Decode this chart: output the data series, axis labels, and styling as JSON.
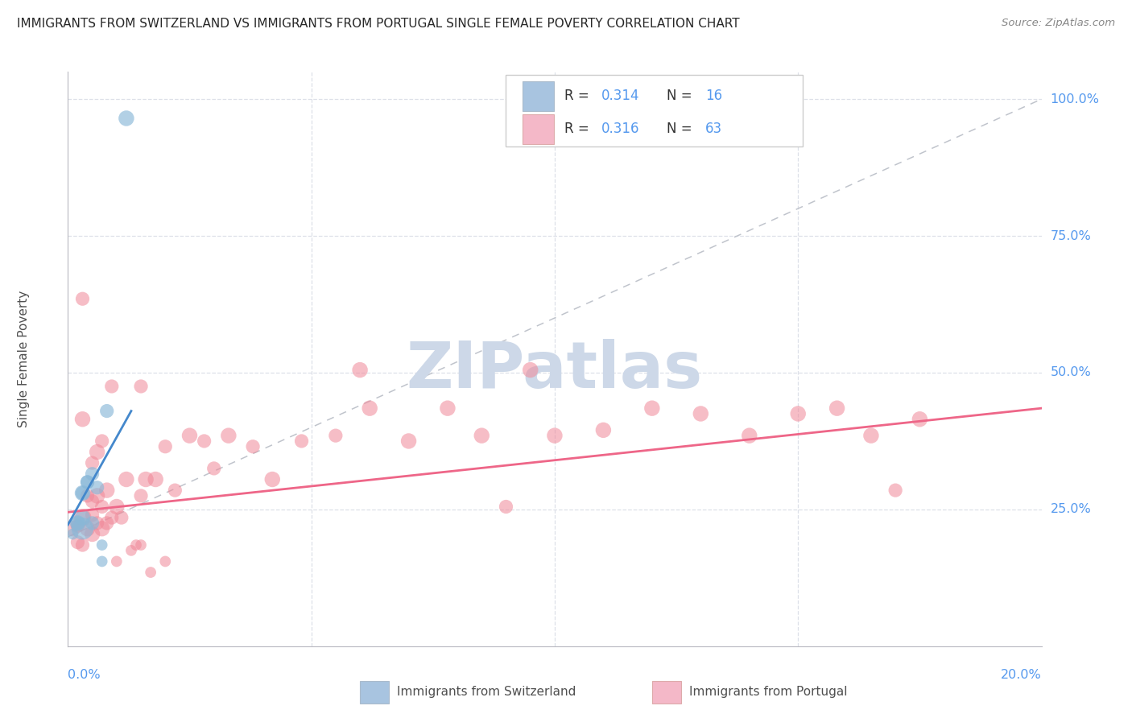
{
  "title": "IMMIGRANTS FROM SWITZERLAND VS IMMIGRANTS FROM PORTUGAL SINGLE FEMALE POVERTY CORRELATION CHART",
  "source": "Source: ZipAtlas.com",
  "ylabel": "Single Female Poverty",
  "ytick_labels": [
    "25.0%",
    "50.0%",
    "75.0%",
    "100.0%"
  ],
  "ytick_values": [
    0.25,
    0.5,
    0.75,
    1.0
  ],
  "xlim": [
    0.0,
    0.2
  ],
  "ylim": [
    0.0,
    1.05
  ],
  "legend_color_swiss": "#a8c4e0",
  "legend_color_port": "#f4b8c8",
  "dot_color_swiss": "#89b8d8",
  "dot_color_port": "#f08898",
  "trendline_color_swiss": "#4488cc",
  "trendline_color_port": "#ee6688",
  "refline_color": "#c0c4cc",
  "watermark_color": "#cdd8e8",
  "grid_color": "#dde0e8",
  "title_color": "#282828",
  "source_color": "#888888",
  "axis_label_color": "#5599ee",
  "swiss_x": [
    0.001,
    0.002,
    0.002,
    0.003,
    0.003,
    0.003,
    0.003,
    0.004,
    0.004,
    0.005,
    0.005,
    0.006,
    0.007,
    0.007,
    0.008,
    0.012
  ],
  "swiss_y": [
    0.205,
    0.225,
    0.225,
    0.215,
    0.235,
    0.28,
    0.28,
    0.3,
    0.3,
    0.315,
    0.225,
    0.29,
    0.185,
    0.155,
    0.43,
    0.965
  ],
  "swiss_size": [
    35,
    70,
    55,
    140,
    70,
    70,
    55,
    55,
    55,
    55,
    55,
    55,
    35,
    35,
    55,
    70
  ],
  "port_x": [
    0.001,
    0.002,
    0.002,
    0.003,
    0.003,
    0.004,
    0.004,
    0.005,
    0.005,
    0.005,
    0.006,
    0.006,
    0.006,
    0.007,
    0.007,
    0.008,
    0.008,
    0.009,
    0.01,
    0.01,
    0.011,
    0.012,
    0.013,
    0.014,
    0.015,
    0.015,
    0.016,
    0.017,
    0.018,
    0.02,
    0.022,
    0.025,
    0.028,
    0.03,
    0.033,
    0.038,
    0.042,
    0.048,
    0.055,
    0.062,
    0.07,
    0.078,
    0.085,
    0.09,
    0.095,
    0.1,
    0.11,
    0.12,
    0.13,
    0.14,
    0.15,
    0.158,
    0.165,
    0.17,
    0.175,
    0.003,
    0.003,
    0.005,
    0.007,
    0.009,
    0.015,
    0.02,
    0.06
  ],
  "port_y": [
    0.215,
    0.19,
    0.22,
    0.185,
    0.235,
    0.215,
    0.275,
    0.205,
    0.24,
    0.265,
    0.225,
    0.275,
    0.355,
    0.215,
    0.255,
    0.225,
    0.285,
    0.235,
    0.155,
    0.255,
    0.235,
    0.305,
    0.175,
    0.185,
    0.275,
    0.185,
    0.305,
    0.135,
    0.305,
    0.365,
    0.285,
    0.385,
    0.375,
    0.325,
    0.385,
    0.365,
    0.305,
    0.375,
    0.385,
    0.435,
    0.375,
    0.435,
    0.385,
    0.255,
    0.505,
    0.385,
    0.395,
    0.435,
    0.425,
    0.385,
    0.425,
    0.435,
    0.385,
    0.285,
    0.415,
    0.415,
    0.635,
    0.335,
    0.375,
    0.475,
    0.475,
    0.155,
    0.505
  ],
  "port_size": [
    70,
    55,
    55,
    55,
    90,
    70,
    55,
    70,
    55,
    55,
    55,
    70,
    70,
    70,
    55,
    55,
    70,
    55,
    35,
    70,
    55,
    70,
    35,
    35,
    55,
    35,
    70,
    35,
    70,
    55,
    55,
    70,
    55,
    55,
    70,
    55,
    70,
    55,
    55,
    70,
    70,
    70,
    70,
    55,
    70,
    70,
    70,
    70,
    70,
    70,
    70,
    70,
    70,
    55,
    70,
    70,
    55,
    55,
    55,
    55,
    55,
    35,
    70
  ],
  "swiss_trend_x": [
    0.0,
    0.013
  ],
  "swiss_trend_y": [
    0.222,
    0.43
  ],
  "port_trend_x": [
    0.0,
    0.2
  ],
  "port_trend_y": [
    0.245,
    0.435
  ],
  "refline_x": [
    0.0,
    0.2
  ],
  "refline_y": [
    0.2,
    1.0
  ]
}
